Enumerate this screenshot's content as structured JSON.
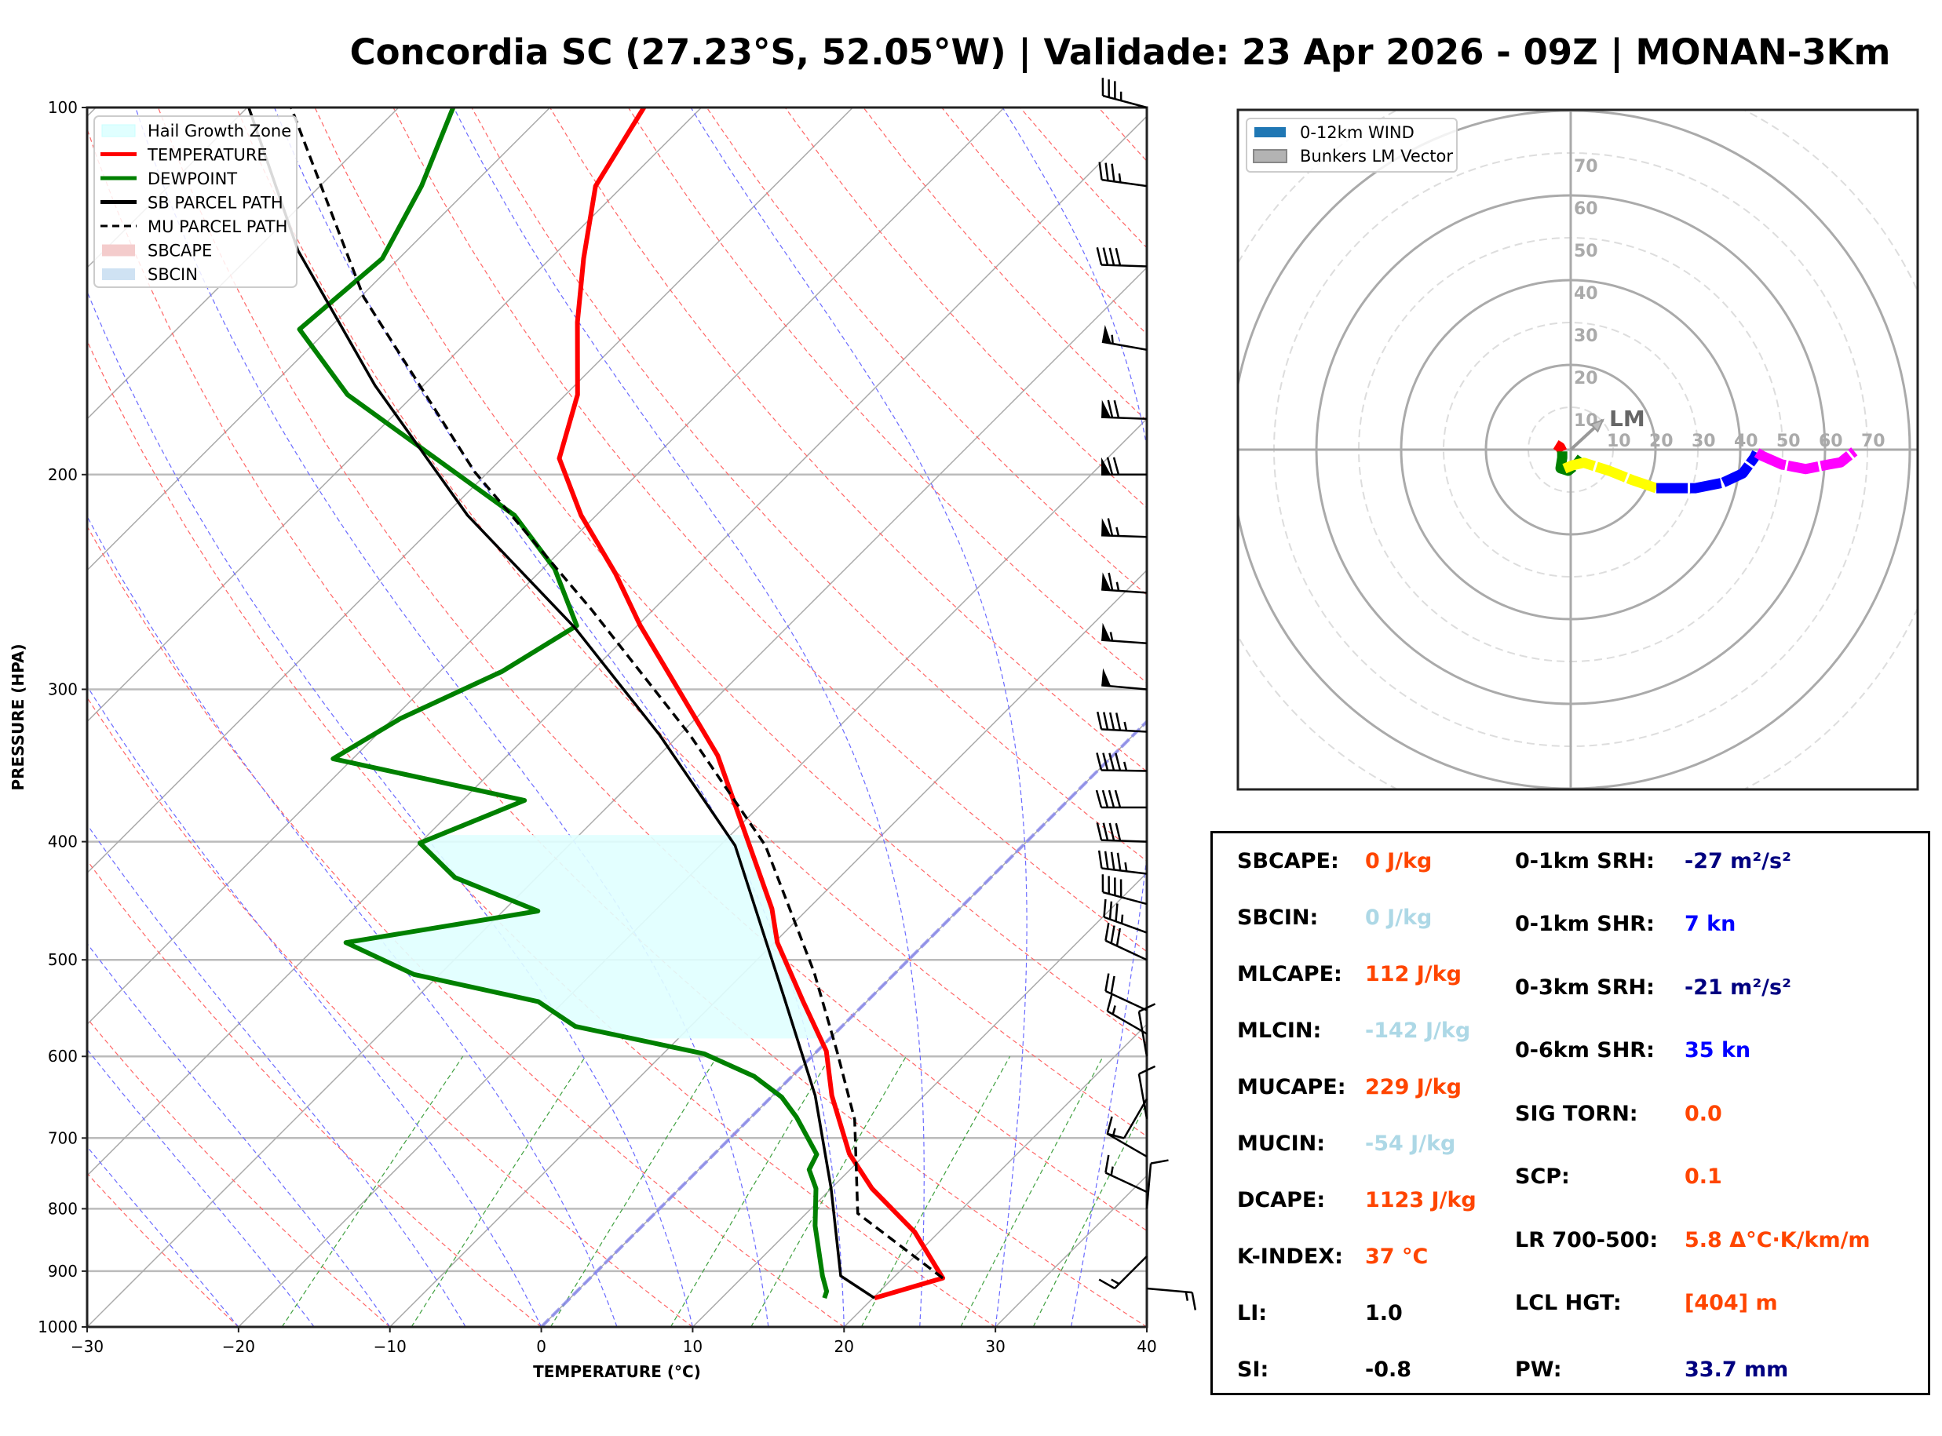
{
  "title": "Concordia SC (27.23°S, 52.05°W) | Validade: 23 Apr 2026 - 09Z | MONAN-3Km",
  "chart_data": [
    {
      "type": "line",
      "name": "skew-t",
      "xlabel": "TEMPERATURE (°C)",
      "ylabel": "PRESSURE (HPA)",
      "xlim": [
        -30,
        40
      ],
      "ylim": [
        1000,
        100
      ],
      "yscale": "log",
      "skew": 45,
      "xticks": [
        -30,
        -20,
        -10,
        0,
        10,
        20,
        30,
        40
      ],
      "xtick_labels": [
        "−30",
        "−20",
        "−10",
        "0",
        "10",
        "20",
        "30",
        "40"
      ],
      "yticks": [
        100,
        200,
        300,
        400,
        500,
        600,
        700,
        800,
        900,
        1000
      ],
      "ytick_labels": [
        "100",
        "200",
        "300",
        "400",
        "500",
        "600",
        "700",
        "800",
        "900",
        "1000"
      ],
      "legend_position": "top-left",
      "legend": [
        {
          "label": "Hail Growth Zone",
          "type": "patch",
          "color": "#e0ffff"
        },
        {
          "label": "TEMPERATURE",
          "type": "line",
          "color": "#ff0000"
        },
        {
          "label": "DEWPOINT",
          "type": "line",
          "color": "#008000"
        },
        {
          "label": "SB PARCEL PATH",
          "type": "line",
          "color": "#000000"
        },
        {
          "label": "MU PARCEL PATH",
          "type": "dashed",
          "color": "#000000"
        },
        {
          "label": "SBCAPE",
          "type": "patch",
          "color": "#f4cccc"
        },
        {
          "label": "SBCIN",
          "type": "patch",
          "color": "#cfe2f3"
        }
      ],
      "series": [
        {
          "name": "TEMPERATURE",
          "color": "#ff0000",
          "p": [
            947,
            912,
            836,
            770,
            721,
            646,
            594,
            541,
            484,
            454,
            340,
            266,
            241,
            216,
            194,
            172,
            150,
            133,
            116,
            100
          ],
          "t": [
            20.1,
            23.3,
            18.4,
            12.7,
            8.9,
            3.9,
            0.6,
            -4.2,
            -9.8,
            -12.4,
            -26.1,
            -39.8,
            -44.9,
            -51.0,
            -56.2,
            -59.2,
            -64.0,
            -67.8,
            -71.8,
            -73.8
          ]
        },
        {
          "name": "DEWPOINT",
          "color": "#008000",
          "p": [
            947,
            935,
            908,
            826,
            770,
            743,
            722,
            673,
            648,
            623,
            597,
            567,
            541,
            514,
            484,
            456,
            428,
            401,
            370,
            342,
            317,
            290,
            266,
            239,
            216,
            172,
            152,
            133,
            116,
            100
          ],
          "t": [
            16.8,
            16.5,
            15.2,
            11.4,
            9.0,
            7.3,
            6.8,
            3.0,
            0.7,
            -2.5,
            -7.3,
            -17.6,
            -21.7,
            -31.7,
            -38.3,
            -27.7,
            -35.4,
            -40.0,
            -35.9,
            -51.3,
            -49.5,
            -45.9,
            -44.0,
            -49.2,
            -55.4,
            -74.4,
            -81.9,
            -81.1,
            -83.3,
            -86.4
          ]
        },
        {
          "name": "SB PARCEL PATH",
          "color": "#000000",
          "p": [
            947,
            908,
            770,
            646,
            536,
            403,
            327,
            267,
            216,
            169,
            131,
            100
          ],
          "t": [
            20.1,
            16.4,
            10.0,
            2.8,
            -5.8,
            -19.0,
            -31.3,
            -44.0,
            -58.5,
            -73.2,
            -87.2,
            -99.9
          ]
        },
        {
          "name": "MU PARCEL PATH",
          "color": "#000000",
          "dashed": true,
          "p": [
            912,
            807,
            676,
            594,
            512,
            403,
            327,
            258,
            199,
            143,
            100
          ],
          "t": [
            23.3,
            13.4,
            7.0,
            1.3,
            -5.4,
            -17.0,
            -29.3,
            -44.1,
            -60.9,
            -79.8,
            -97.1
          ]
        }
      ],
      "hail_growth_zone": {
        "p_bottom": 580,
        "p_top": 395,
        "color": "#e0ffff"
      },
      "wind_barbs": [
        {
          "p": 100,
          "speed_kt": 35,
          "dir_deg": 285
        },
        {
          "p": 116,
          "speed_kt": 35,
          "dir_deg": 278
        },
        {
          "p": 135,
          "speed_kt": 40,
          "dir_deg": 272
        },
        {
          "p": 158,
          "speed_kt": 55,
          "dir_deg": 280
        },
        {
          "p": 180,
          "speed_kt": 70,
          "dir_deg": 272
        },
        {
          "p": 200,
          "speed_kt": 70,
          "dir_deg": 270
        },
        {
          "p": 225,
          "speed_kt": 65,
          "dir_deg": 272
        },
        {
          "p": 250,
          "speed_kt": 65,
          "dir_deg": 274
        },
        {
          "p": 275,
          "speed_kt": 55,
          "dir_deg": 274
        },
        {
          "p": 300,
          "speed_kt": 50,
          "dir_deg": 275
        },
        {
          "p": 325,
          "speed_kt": 45,
          "dir_deg": 273
        },
        {
          "p": 350,
          "speed_kt": 45,
          "dir_deg": 271
        },
        {
          "p": 375,
          "speed_kt": 40,
          "dir_deg": 270
        },
        {
          "p": 400,
          "speed_kt": 40,
          "dir_deg": 272
        },
        {
          "p": 425,
          "speed_kt": 45,
          "dir_deg": 277
        },
        {
          "p": 450,
          "speed_kt": 40,
          "dir_deg": 285
        },
        {
          "p": 475,
          "speed_kt": 35,
          "dir_deg": 290
        },
        {
          "p": 500,
          "speed_kt": 30,
          "dir_deg": 295
        },
        {
          "p": 550,
          "speed_kt": 20,
          "dir_deg": 295
        },
        {
          "p": 575,
          "speed_kt": 15,
          "dir_deg": 300
        },
        {
          "p": 600,
          "speed_kt": 10,
          "dir_deg": 350
        },
        {
          "p": 650,
          "speed_kt": 10,
          "dir_deg": 210
        },
        {
          "p": 675,
          "speed_kt": 10,
          "dir_deg": 350
        },
        {
          "p": 725,
          "speed_kt": 15,
          "dir_deg": 300
        },
        {
          "p": 775,
          "speed_kt": 15,
          "dir_deg": 295
        },
        {
          "p": 800,
          "speed_kt": 10,
          "dir_deg": 5
        },
        {
          "p": 875,
          "speed_kt": 15,
          "dir_deg": 225
        },
        {
          "p": 930,
          "speed_kt": 15,
          "dir_deg": 95
        }
      ]
    },
    {
      "type": "line",
      "name": "hodograph",
      "units": "kt",
      "rings": [
        10,
        20,
        30,
        40,
        50,
        60,
        70,
        80
      ],
      "ring_labels": [
        "10",
        "20",
        "30",
        "40",
        "50",
        "60",
        "70"
      ],
      "legend_position": "top-left",
      "legend": [
        {
          "label": "0-12km WIND",
          "color": "#1f77b4"
        },
        {
          "label": "Bunkers LM Vector",
          "color": "#aaaaaa"
        }
      ],
      "segments": [
        {
          "color": "#ff0000",
          "u": [
            -3.5,
            -2.5,
            -2.0
          ],
          "v": [
            1.2,
            0.6,
            -0.4
          ]
        },
        {
          "color": "#008000",
          "u": [
            -2.0,
            -2.0,
            -2.4,
            -0.6,
            1.7,
            2.6
          ],
          "v": [
            -0.4,
            -1.9,
            -4.4,
            -5.0,
            -3.1,
            -1.9
          ]
        },
        {
          "color": "#ffff00",
          "u": [
            -1.5,
            0.4,
            3.1,
            9.1,
            14.6,
            20.2
          ],
          "v": [
            -4.5,
            -3.7,
            -3.1,
            -5.0,
            -7.2,
            -9.1
          ]
        },
        {
          "color": "#0000ff",
          "u": [
            20.2,
            29.4,
            35.9,
            40.6,
            43.3,
            43.9
          ],
          "v": [
            -9.1,
            -9.1,
            -7.8,
            -5.6,
            -1.9,
            -0.7
          ]
        },
        {
          "color": "#ff00ff",
          "u": [
            43.9,
            45.2,
            49.8,
            55.4,
            60.9,
            63.7,
            66.9
          ],
          "v": [
            -0.7,
            -1.5,
            -3.5,
            -4.6,
            -3.5,
            -3.0,
            -0.4
          ]
        }
      ],
      "lm_vector": {
        "label": "LM",
        "u": 7.6,
        "v": 7.0,
        "color": "#999999"
      }
    }
  ],
  "stats": {
    "left": [
      {
        "label": "SBCAPE:",
        "value": "0 J/kg",
        "color": "#ff4500"
      },
      {
        "label": "SBCIN:",
        "value": "0 J/kg",
        "color": "#add8e6"
      },
      {
        "label": "MLCAPE:",
        "value": "112 J/kg",
        "color": "#ff4500"
      },
      {
        "label": "MLCIN:",
        "value": "-142 J/kg",
        "color": "#add8e6"
      },
      {
        "label": "MUCAPE:",
        "value": "229 J/kg",
        "color": "#ff4500"
      },
      {
        "label": "MUCIN:",
        "value": "-54 J/kg",
        "color": "#add8e6"
      },
      {
        "label": "DCAPE:",
        "value": "1123 J/kg",
        "color": "#ff4500"
      },
      {
        "label": "K-INDEX:",
        "value": "37 °C",
        "color": "#ff4500"
      },
      {
        "label": "LI:",
        "value": "1.0",
        "color": "#000000"
      },
      {
        "label": "SI:",
        "value": "-0.8",
        "color": "#000000"
      }
    ],
    "right": [
      {
        "label": "0-1km SRH:",
        "value": "-27 m²/s²",
        "color": "#000080"
      },
      {
        "label": "0-1km SHR:",
        "value": "7 kn",
        "color": "#0000ff"
      },
      {
        "label": "0-3km SRH:",
        "value": "-21 m²/s²",
        "color": "#000080"
      },
      {
        "label": "0-6km SHR:",
        "value": "35 kn",
        "color": "#0000ff"
      },
      {
        "label": "SIG TORN:",
        "value": "0.0",
        "color": "#ff4500"
      },
      {
        "label": "SCP:",
        "value": "0.1",
        "color": "#ff4500"
      },
      {
        "label": "LR 700-500:",
        "value": "5.8 Δ°C·K/km/m",
        "color": "#ff4500"
      },
      {
        "label": "LCL HGT:",
        "value": "[404] m",
        "color": "#ff4500"
      },
      {
        "label": "PW:",
        "value": "33.7 mm",
        "color": "#000080"
      }
    ]
  }
}
